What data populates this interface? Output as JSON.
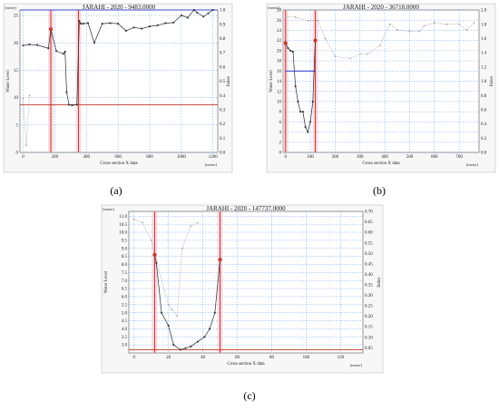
{
  "chart_data": [
    {
      "id": "a",
      "panel_label": "(a)",
      "type": "line",
      "title": "JARAHI - 2020 - 9483.0000",
      "xlabel": "Cross section X data",
      "ylabel": "Water Level",
      "y2label": "Index",
      "x_unit": "[meter]",
      "y_unit": "[meter]",
      "xlim": [
        -20,
        1230
      ],
      "ylim": [
        0,
        26
      ],
      "y2lim": [
        0,
        1.0
      ],
      "xticks": [
        0,
        200,
        400,
        600,
        800,
        1000,
        1200
      ],
      "yticks": [
        0,
        5,
        10,
        15,
        20,
        25
      ],
      "y2ticks": [
        0,
        0.1,
        0.2,
        0.3,
        0.4,
        0.5,
        0.6,
        0.7,
        0.8,
        0.9,
        1.0
      ],
      "bed_profile": {
        "x": [
          0,
          40,
          90,
          160,
          175,
          210,
          255,
          265,
          275,
          290,
          310,
          340,
          355,
          365,
          380,
          410,
          450,
          500,
          550,
          600,
          650,
          700,
          750,
          800,
          850,
          900,
          950,
          1000,
          1040,
          1080,
          1100,
          1140,
          1170,
          1200
        ],
        "y": [
          19.5,
          19.7,
          19.6,
          19,
          22.5,
          18.5,
          18,
          18.4,
          11,
          8.7,
          8.6,
          8.7,
          24,
          23.5,
          23.5,
          23.6,
          20,
          23.5,
          23.6,
          23.5,
          22.2,
          22.8,
          22.6,
          23.0,
          23.2,
          23.6,
          23.7,
          25.0,
          24.6,
          26.0,
          25.5,
          24.8,
          25.4,
          26.0
        ]
      },
      "index_profile": {
        "x": [
          0,
          20,
          40
        ],
        "y": [
          0.38,
          0.05,
          0.4
        ]
      },
      "water_level": 26.0,
      "reference_level": 8.7,
      "bank_markers_x": [
        175,
        350
      ],
      "dot_points": [
        175,
        350
      ]
    },
    {
      "id": "b",
      "panel_label": "(b)",
      "type": "line",
      "title": "JARAHI - 2020 - 36718.0000",
      "xlabel": "Cross section X data",
      "ylabel": "Water Level",
      "y2label": "Index",
      "x_unit": "[meter]",
      "y_unit": "[meter]",
      "xlim": [
        -10,
        780
      ],
      "ylim": [
        0,
        28
      ],
      "y2lim": [
        0,
        2.0
      ],
      "xticks": [
        0,
        100,
        200,
        300,
        400,
        500,
        600,
        700
      ],
      "yticks": [
        0,
        2,
        4,
        6,
        8,
        10,
        12,
        14,
        16,
        18,
        20,
        22,
        24,
        26,
        28
      ],
      "y2ticks": [
        0,
        0.2,
        0.4,
        0.6,
        0.8,
        1.0,
        1.2,
        1.4,
        1.6,
        1.8,
        2.0
      ],
      "bed_profile": {
        "x": [
          0,
          10,
          20,
          30,
          40,
          50,
          60,
          70,
          80,
          90,
          100,
          110,
          120
        ],
        "y": [
          21.5,
          20.5,
          20,
          19.8,
          13,
          10,
          8,
          8,
          5,
          4,
          6,
          10,
          22
        ]
      },
      "index_profile": {
        "x": [
          0,
          40,
          90,
          130,
          160,
          200,
          260,
          300,
          330,
          380,
          420,
          450,
          500,
          540,
          560,
          600,
          650,
          700,
          730,
          760
        ],
        "y": [
          1.9,
          1.9,
          1.85,
          1.85,
          1.6,
          1.35,
          1.32,
          1.38,
          1.38,
          1.5,
          1.8,
          1.72,
          1.7,
          1.7,
          1.78,
          1.82,
          1.8,
          1.8,
          1.72,
          1.82
        ]
      },
      "water_level": 16.0,
      "water_level_x_range": [
        0,
        120
      ],
      "bank_markers_x": [
        0,
        120
      ],
      "dot_points": [
        0,
        120
      ]
    },
    {
      "id": "c",
      "panel_label": "(c)",
      "type": "line",
      "title": "JARAHI - 2020 - 147737.0000",
      "xlabel": "Cross section X data",
      "ylabel": "Water Level",
      "y2label": "Index",
      "x_unit": "[meter]",
      "y_unit": "[meter]",
      "xlim": [
        -3,
        133
      ],
      "ylim": [
        2.5,
        11.3
      ],
      "y2lim": [
        0.025,
        0.7
      ],
      "xticks": [
        0,
        20,
        40,
        60,
        80,
        100,
        120
      ],
      "yticks": [
        3.0,
        3.5,
        4.0,
        4.5,
        5.0,
        5.5,
        6.0,
        6.5,
        7.0,
        7.5,
        8.0,
        8.5,
        9.0,
        9.5,
        10.0,
        10.5,
        11.0
      ],
      "y2ticks": [
        0.05,
        0.1,
        0.15,
        0.2,
        0.25,
        0.3,
        0.35,
        0.4,
        0.45,
        0.5,
        0.55,
        0.6,
        0.65,
        0.7
      ],
      "bed_profile": {
        "x": [
          12,
          13,
          16,
          20,
          23,
          27,
          30,
          33,
          37,
          41,
          44,
          47,
          50
        ],
        "y": [
          8.6,
          8.1,
          5.0,
          4.2,
          3.0,
          2.7,
          2.8,
          2.9,
          3.2,
          3.5,
          4.0,
          5.0,
          8.3
        ]
      },
      "index_profile": {
        "x": [
          0,
          5,
          10,
          12,
          20,
          22,
          25,
          28,
          33,
          37
        ],
        "y": [
          10.8,
          10.6,
          9.5,
          8.6,
          5.5,
          5.2,
          4.8,
          9.0,
          10.4,
          10.6
        ]
      },
      "water_level": 2.7,
      "bank_markers_x": [
        12,
        50
      ],
      "dot_points": [
        12,
        50
      ]
    }
  ]
}
